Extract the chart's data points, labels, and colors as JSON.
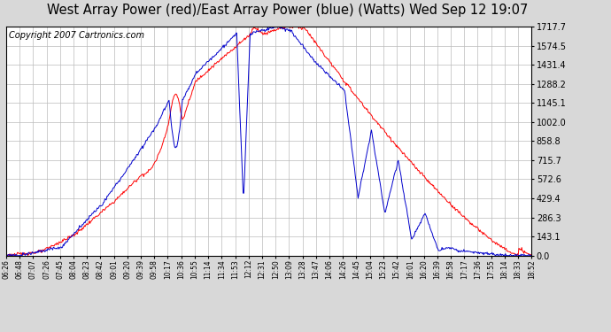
{
  "title": "West Array Power (red)/East Array Power (blue) (Watts) Wed Sep 12 19:07",
  "copyright": "Copyright 2007 Cartronics.com",
  "yticks": [
    0.0,
    143.1,
    286.3,
    429.4,
    572.6,
    715.7,
    858.8,
    1002.0,
    1145.1,
    1288.2,
    1431.4,
    1574.5,
    1717.7
  ],
  "xtick_labels": [
    "06:26",
    "06:48",
    "07:07",
    "07:26",
    "07:45",
    "08:04",
    "08:23",
    "08:42",
    "09:01",
    "09:20",
    "09:39",
    "09:58",
    "10:17",
    "10:36",
    "10:55",
    "11:14",
    "11:34",
    "11:53",
    "12:12",
    "12:31",
    "12:50",
    "13:09",
    "13:28",
    "13:47",
    "14:06",
    "14:26",
    "14:45",
    "15:04",
    "15:23",
    "15:42",
    "16:01",
    "16:20",
    "16:39",
    "16:58",
    "17:17",
    "17:36",
    "17:55",
    "18:14",
    "18:33",
    "18:52"
  ],
  "ylim": [
    0.0,
    1717.7
  ],
  "background_color": "#d8d8d8",
  "plot_bg_color": "#ffffff",
  "grid_color": "#bbbbbb",
  "red_color": "#ff0000",
  "blue_color": "#0000cc",
  "title_fontsize": 10.5,
  "copyright_fontsize": 7
}
